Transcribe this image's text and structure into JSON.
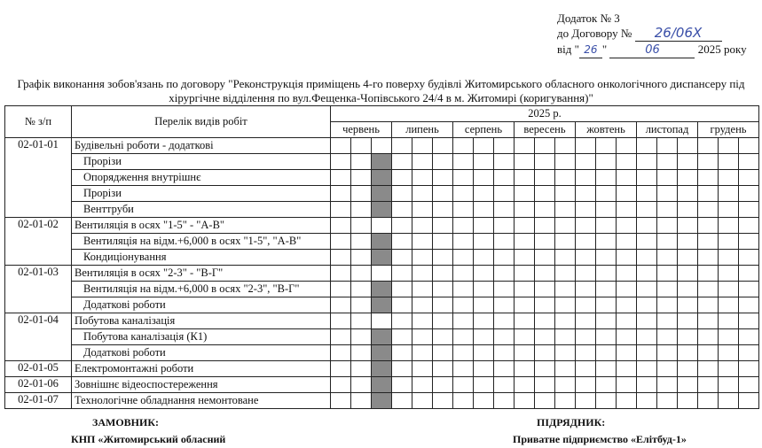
{
  "annex": {
    "line1": "Додаток № 3",
    "line2_prefix": "до Договору №",
    "contract_no": "26/06Х",
    "line3_prefix": "від \"",
    "day": "26",
    "line3_mid": "\"",
    "month": "06",
    "year_suffix": "2025 року"
  },
  "title": {
    "line1": "Графік виконання зобов'язань по договору \"Реконструкція приміщень 4-го поверху будівлі Житомирського обласного онкологічного диспансеру під",
    "line2": "хірургічне відділення по вул.Фещенка-Чопівського 24/4 в м. Житомирі (коригування)\""
  },
  "table": {
    "col_no": "№ з/п",
    "col_name": "Перелік видів робіт",
    "year": "2025 р.",
    "months": [
      "червень",
      "липень",
      "серпень",
      "вересень",
      "жовтень",
      "листопад",
      "грудень"
    ],
    "fill_color": "#8a8a8a",
    "rows": [
      {
        "no": "02-01-01",
        "name": "Будівельні роботи - додаткові",
        "sub": false,
        "filled_decades": [],
        "span": 5
      },
      {
        "no": "",
        "name": "Прорізи",
        "sub": true,
        "filled_decades": [
          3
        ]
      },
      {
        "no": "",
        "name": "Опорядження внутрішнє",
        "sub": true,
        "filled_decades": [
          3
        ]
      },
      {
        "no": "",
        "name": "Прорізи",
        "sub": true,
        "filled_decades": [
          3
        ]
      },
      {
        "no": "",
        "name": "Венттруби",
        "sub": true,
        "filled_decades": [
          3
        ]
      },
      {
        "no": "02-01-02",
        "name": "Вентиляція в осях \"1-5\" - \"А-В\"",
        "sub": false,
        "filled_decades": [],
        "span": 3
      },
      {
        "no": "",
        "name": "Вентиляція на відм.+6,000 в осях \"1-5\", \"А-В\"",
        "sub": true,
        "filled_decades": [
          3
        ]
      },
      {
        "no": "",
        "name": "Кондиціонування",
        "sub": true,
        "filled_decades": [
          3
        ]
      },
      {
        "no": "02-01-03",
        "name": "Вентиляція в осях \"2-3\" - \"В-Г\"",
        "sub": false,
        "filled_decades": [],
        "span": 3
      },
      {
        "no": "",
        "name": "Вентиляція на відм.+6,000 в осях \"2-3\", \"В-Г\"",
        "sub": true,
        "filled_decades": [
          3
        ]
      },
      {
        "no": "",
        "name": "Додаткові роботи",
        "sub": true,
        "filled_decades": [
          3
        ]
      },
      {
        "no": "02-01-04",
        "name": "Побутова каналізація",
        "sub": false,
        "filled_decades": [],
        "span": 3
      },
      {
        "no": "",
        "name": "Побутова каналізація (К1)",
        "sub": true,
        "filled_decades": [
          3
        ]
      },
      {
        "no": "",
        "name": "Додаткові роботи",
        "sub": true,
        "filled_decades": [
          3
        ]
      },
      {
        "no": "02-01-05",
        "name": "Електромонтажні роботи",
        "sub": false,
        "filled_decades": [
          3
        ],
        "span": 1
      },
      {
        "no": "02-01-06",
        "name": "Зовнішнє відеоспостереження",
        "sub": false,
        "filled_decades": [
          3
        ],
        "span": 1
      },
      {
        "no": "02-01-07",
        "name": "Технологічне обладнання немонтоване",
        "sub": false,
        "filled_decades": [
          3
        ],
        "span": 1
      }
    ]
  },
  "signatures": {
    "customer_label": "ЗАМОВНИК:",
    "customer_name": "КНП «Житомирський обласний",
    "contractor_label": "ПІДРЯДНИК:",
    "contractor_name": "Приватне підприємство «Елітбуд-1»"
  }
}
